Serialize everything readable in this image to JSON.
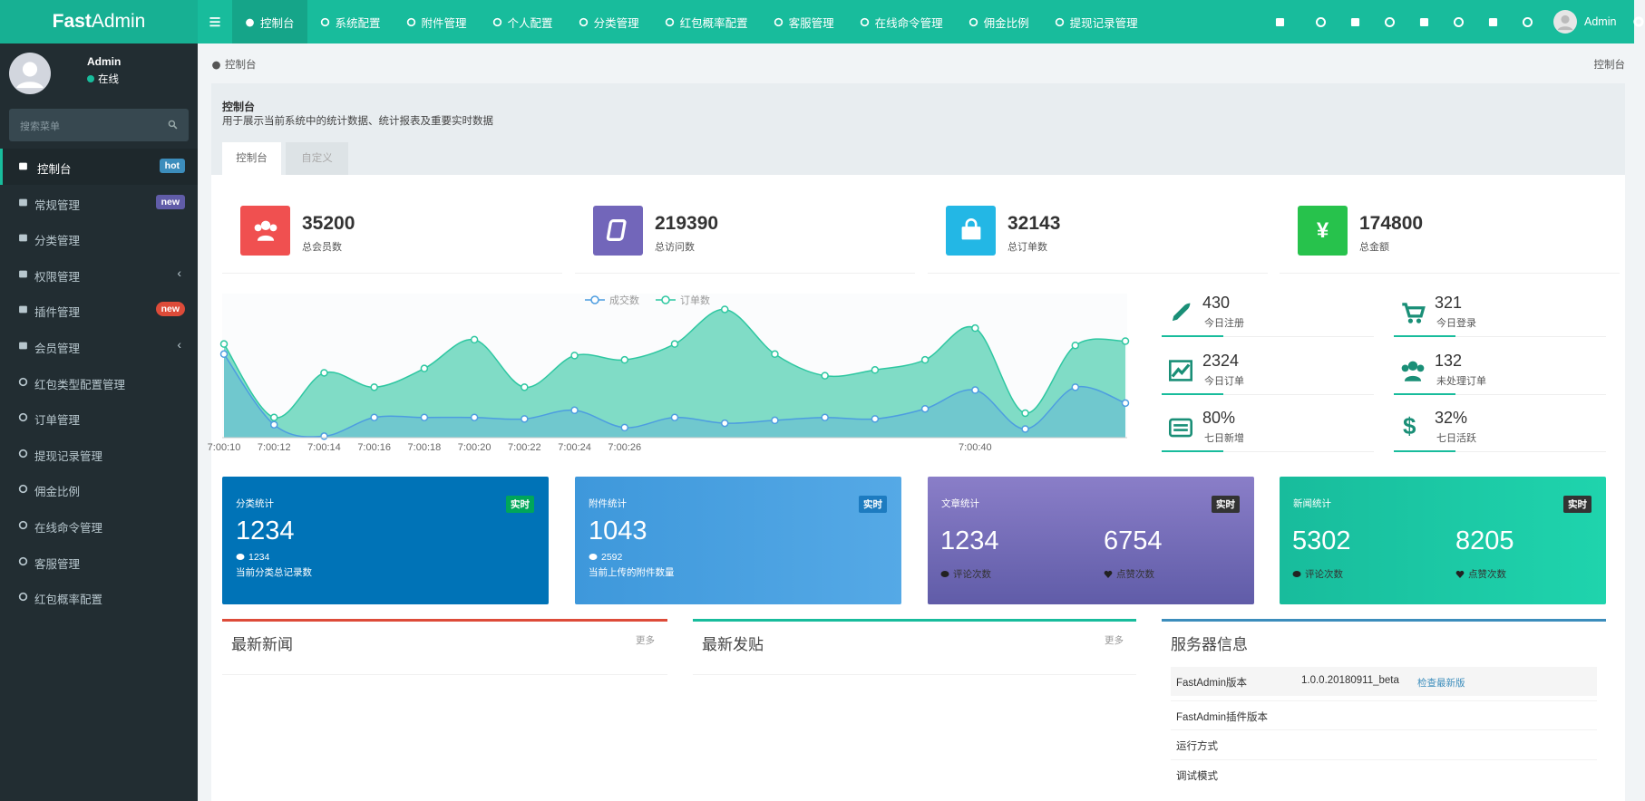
{
  "header": {
    "logo_bold": "Fast",
    "logo_rest": "Admin",
    "nav": [
      "控制台",
      "系统配置",
      "附件管理",
      "个人配置",
      "分类管理",
      "红包概率配置",
      "客服管理",
      "在线命令管理",
      "佣金比例",
      "提现记录管理"
    ],
    "user": "Admin"
  },
  "sidebar": {
    "user": "Admin",
    "status": "在线",
    "search": "搜索菜单",
    "menu": [
      {
        "label": "控制台",
        "badge": "hot"
      },
      {
        "label": "常规管理",
        "badge": "new"
      },
      {
        "label": "分类管理"
      },
      {
        "label": "权限管理",
        "arrow": "‹"
      },
      {
        "label": "插件管理",
        "badge": "new"
      },
      {
        "label": "会员管理",
        "arrow": "‹"
      },
      {
        "label": "红包类型配置管理"
      },
      {
        "label": "订单管理"
      },
      {
        "label": "提现记录管理"
      },
      {
        "label": "佣金比例"
      },
      {
        "label": "在线命令管理"
      },
      {
        "label": "客服管理"
      },
      {
        "label": "红包概率配置"
      }
    ]
  },
  "breadcrumb": {
    "left": "控制台",
    "right": "控制台"
  },
  "panel": {
    "title": "控制台",
    "description": "用于展示当前系统中的统计数据、统计报表及重要实时数据",
    "tabs": [
      "控制台",
      "自定义"
    ]
  },
  "stats": [
    {
      "value": 35200,
      "label": "总会员数"
    },
    {
      "value": 219390,
      "label": "总访问数"
    },
    {
      "value": 32143,
      "label": "总订单数"
    },
    {
      "value": 174800,
      "label": "总金额",
      "icon": "¥"
    }
  ],
  "chart_data": {
    "type": "area",
    "x": [
      "7:00:10",
      "7:00:12",
      "7:00:14",
      "7:00:16",
      "7:00:18",
      "7:00:20",
      "7:00:22",
      "7:00:24",
      "7:00:26",
      null,
      null,
      null,
      null,
      null,
      null,
      "7:00:40",
      null,
      null,
      null
    ],
    "series": [
      {
        "name": "成交数",
        "color": "#4d9de0",
        "values": [
          58,
          9,
          1,
          14,
          14,
          14,
          13,
          19,
          7,
          14,
          10,
          12,
          14,
          13,
          20,
          33,
          6,
          35,
          24
        ]
      },
      {
        "name": "订单数",
        "color": "#2ec7a1",
        "values": [
          65,
          14,
          45,
          35,
          48,
          68,
          35,
          57,
          54,
          65,
          89,
          58,
          43,
          47,
          54,
          76,
          17,
          64,
          67
        ]
      }
    ],
    "ylim": [
      0,
      100
    ]
  },
  "mini_stats": [
    {
      "value": 430,
      "label": "今日注册"
    },
    {
      "value": 321,
      "label": "今日登录"
    },
    {
      "value": 2324,
      "label": "今日订单"
    },
    {
      "value": 132,
      "label": "未处理订单"
    },
    {
      "value": "80%",
      "label": "七日新增"
    },
    {
      "value": "32%",
      "label": "七日活跃",
      "icon": "$"
    }
  ],
  "boxes": [
    {
      "title": "分类统计",
      "badge": "实时",
      "value": 1234,
      "sub": 1234,
      "desc": "当前分类总记录数"
    },
    {
      "title": "附件统计",
      "badge": "实时",
      "value": 1043,
      "sub": 2592,
      "desc": "当前上传的附件数量"
    },
    {
      "title": "文章统计",
      "badge": "实时",
      "items": [
        {
          "value": 1234,
          "label": "评论次数"
        },
        {
          "value": 6754,
          "label": "点赞次数"
        }
      ]
    },
    {
      "title": "新闻统计",
      "badge": "实时",
      "items": [
        {
          "value": 5302,
          "label": "评论次数"
        },
        {
          "value": 8205,
          "label": "点赞次数"
        }
      ]
    }
  ],
  "panels": [
    {
      "title": "最新新闻",
      "more": "更多"
    },
    {
      "title": "最新发贴",
      "more": "更多"
    }
  ],
  "server": {
    "title": "服务器信息",
    "rows": [
      {
        "label": "FastAdmin版本",
        "value": "1.0.0.20180911_beta",
        "link": "检查最新版"
      },
      {
        "label": "FastAdmin插件版本"
      },
      {
        "label": "运行方式"
      },
      {
        "label": "调试模式"
      }
    ]
  }
}
